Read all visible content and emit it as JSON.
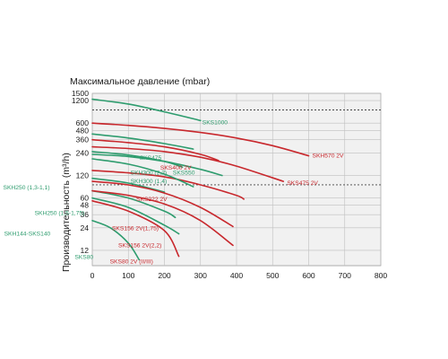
{
  "chart_data": {
    "type": "line",
    "title": "Максимальное давление (mbar)",
    "xlabel": "",
    "ylabel_text": "Производительность (m³/h)",
    "x_axis": {
      "min": 0,
      "max": 800,
      "ticks": [
        "0",
        "100",
        "200",
        "300",
        "400",
        "500",
        "600",
        "700",
        "800"
      ]
    },
    "y_axis": {
      "scale": "log",
      "min": 7.5,
      "max": 1500,
      "ticks": [
        {
          "value": 12,
          "label": "12"
        },
        {
          "value": 24,
          "label": "24"
        },
        {
          "value": 36,
          "label": "36"
        },
        {
          "value": 48,
          "label": "48"
        },
        {
          "value": 60,
          "label": "60"
        },
        {
          "value": 120,
          "label": "120"
        },
        {
          "value": 240,
          "label": "240"
        },
        {
          "value": 360,
          "label": "360"
        },
        {
          "value": 480,
          "label": "480"
        },
        {
          "value": 600,
          "label": "600"
        },
        {
          "value": 1200,
          "label": "1200"
        },
        {
          "value": 1500,
          "label": "1500"
        }
      ]
    },
    "reference_lines_y": [
      900,
      90
    ],
    "grid": true,
    "colors": {
      "green": "#2e9c6e",
      "red": "#c8282d"
    },
    "series": [
      {
        "name": "SKS1000",
        "color": "green",
        "x": [
          0,
          100,
          200,
          300
        ],
        "y": [
          1250,
          1080,
          850,
          650
        ]
      },
      {
        "name": "SKH570 2V",
        "color": "red",
        "x": [
          0,
          100,
          200,
          300,
          400,
          500,
          600
        ],
        "y": [
          600,
          560,
          510,
          450,
          380,
          300,
          220
        ]
      },
      {
        "name": "SKS475",
        "color": "green",
        "x": [
          0,
          100,
          200,
          280
        ],
        "y": [
          430,
          380,
          320,
          270
        ]
      },
      {
        "name": "SKS400 2V",
        "color": "red",
        "x": [
          0,
          100,
          200,
          300,
          350
        ],
        "y": [
          360,
          330,
          290,
          230,
          190
        ]
      },
      {
        "name": "SKS475 2V",
        "color": "red",
        "x": [
          0,
          100,
          200,
          300,
          400,
          530
        ],
        "y": [
          290,
          275,
          250,
          210,
          160,
          100
        ]
      },
      {
        "name": "SKH300 (2,2)",
        "color": "green",
        "x": [
          0,
          100,
          200,
          250
        ],
        "y": [
          250,
          225,
          185,
          155
        ]
      },
      {
        "name": "SKS550",
        "color": "green",
        "x": [
          0,
          100,
          200,
          300,
          360
        ],
        "y": [
          230,
          215,
          185,
          145,
          120
        ]
      },
      {
        "name": "SKS222 2V",
        "color": "red",
        "x": [
          0,
          100,
          200,
          300,
          400,
          420
        ],
        "y": [
          140,
          130,
          115,
          90,
          65,
          58
        ]
      },
      {
        "name": "SKH250 (1,3-1,1)",
        "color": "green",
        "x": [
          0,
          100,
          200
        ],
        "y": [
          110,
          95,
          72
        ]
      },
      {
        "name": "SKH300 (1,4)",
        "color": "green",
        "x": [
          0,
          100,
          200,
          280
        ],
        "y": [
          200,
          170,
          125,
          85
        ]
      },
      {
        "name": "SKS156 2V(1,75)",
        "color": "red",
        "x": [
          0,
          100,
          200,
          300,
          390
        ],
        "y": [
          100,
          90,
          70,
          45,
          25
        ]
      },
      {
        "name": "SKH250 (1,5-1,75)",
        "color": "green",
        "x": [
          0,
          100,
          200,
          230
        ],
        "y": [
          75,
          60,
          40,
          33
        ]
      },
      {
        "name": "SKH144-SKS140",
        "color": "green",
        "x": [
          0,
          100,
          200,
          240
        ],
        "y": [
          60,
          45,
          26,
          20
        ]
      },
      {
        "name": "SKS156 2V(2,2)",
        "color": "red",
        "x": [
          0,
          100,
          200,
          300,
          390
        ],
        "y": [
          75,
          65,
          50,
          30,
          14
        ]
      },
      {
        "name": "SKS80",
        "color": "green",
        "x": [
          0,
          50,
          100,
          130
        ],
        "y": [
          30,
          24,
          15,
          9
        ]
      },
      {
        "name": "SKS80 2V (II/III)",
        "color": "red",
        "x": [
          0,
          100,
          200,
          240
        ],
        "y": [
          55,
          40,
          22,
          10
        ]
      }
    ],
    "labels": [
      {
        "text": "SKS1000",
        "series": "SKS1000"
      },
      {
        "text": "SKH570 2V",
        "series": "SKH570 2V"
      },
      {
        "text": "SKS475",
        "series": "SKS475"
      },
      {
        "text": "SKS400 2V",
        "series": "SKS400 2V"
      },
      {
        "text": "SKS475 2V",
        "series": "SKS475 2V"
      },
      {
        "text": "SKH300 (2,2)",
        "series": "SKH300 (2,2)"
      },
      {
        "text": "SKS550",
        "series": "SKS550"
      },
      {
        "text": "SKS222 2V",
        "series": "SKS222 2V"
      },
      {
        "text": "SKH250 (1,3-1,1)",
        "series": "SKH250 (1,3-1,1)"
      },
      {
        "text": "SKH300 (1,4)",
        "series": "SKH300 (1,4)"
      },
      {
        "text": "SKS156 2V(1,75)",
        "series": "SKS156 2V(1,75)"
      },
      {
        "text": "SKH250 (1,5-1,75)",
        "series": "SKH250 (1,5-1,75)"
      },
      {
        "text": "SKH144-SKS140",
        "series": "SKH144-SKS140"
      },
      {
        "text": "SKS156 2V(2,2)",
        "series": "SKS156 2V(2,2)"
      },
      {
        "text": "SKS80",
        "series": "SKS80"
      },
      {
        "text": "SKS80 2V (II/III)",
        "series": "SKS80 2V (II/III)"
      }
    ]
  }
}
